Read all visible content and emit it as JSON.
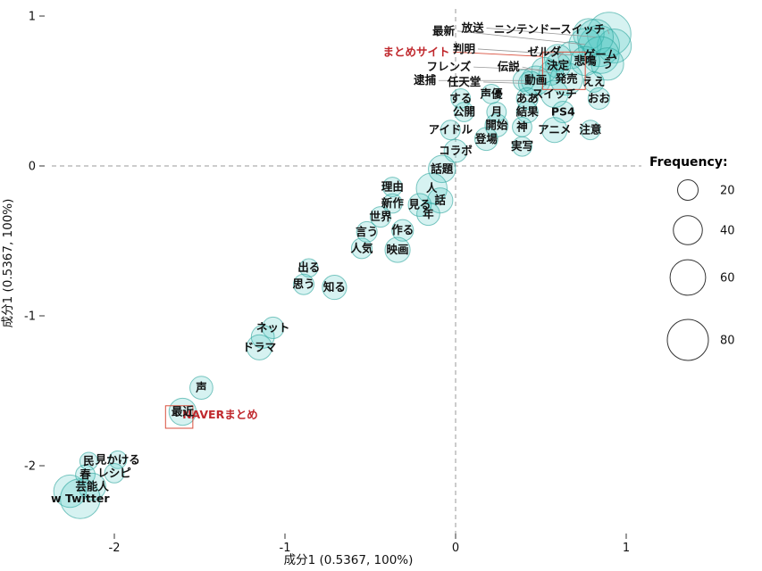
{
  "chart_data": {
    "type": "bubble",
    "title": "",
    "xlabel": "成分1 (0.5367, 100%)",
    "ylabel": "成分1 (0.5367, 100%)",
    "xlim": [
      -2.35,
      1.1
    ],
    "ylim": [
      -2.45,
      1.05
    ],
    "x_ticks": [
      -2,
      -1,
      0,
      1
    ],
    "y_ticks": [
      1,
      0,
      -1,
      -2
    ],
    "guides": {
      "x": 0,
      "y": 0,
      "style": "dashed"
    },
    "grid": false,
    "bubble_fill": "#45c6be",
    "bubble_stroke": "#2aa39b",
    "annotation_color": "#d94f3d",
    "annotation_text_color": "#c0282d",
    "legend": {
      "title": "Frequency:",
      "sizes": [
        20,
        40,
        60,
        80
      ],
      "position": "right"
    },
    "points": [
      {
        "label": "ニンテンドースイッチ",
        "x": 0.9,
        "y": 0.88,
        "freq": 90,
        "lx": 0.55,
        "ly": 0.91
      },
      {
        "label": "",
        "x": 0.84,
        "y": 0.8,
        "freq": 80
      },
      {
        "label": "",
        "x": 0.93,
        "y": 0.8,
        "freq": 55
      },
      {
        "label": "",
        "x": 0.78,
        "y": 0.88,
        "freq": 45
      },
      {
        "label": "放送",
        "x": 0.82,
        "y": 0.86,
        "freq": 60,
        "lx": 0.1,
        "ly": 0.92
      },
      {
        "label": "最新",
        "x": 0.76,
        "y": 0.81,
        "freq": 50,
        "lx": -0.07,
        "ly": 0.9
      },
      {
        "label": "ゲーム",
        "x": 0.85,
        "y": 0.74,
        "freq": 65
      },
      {
        "label": "判明",
        "x": 0.68,
        "y": 0.74,
        "freq": 35,
        "lx": 0.05,
        "ly": 0.78
      },
      {
        "label": "ゼルダ",
        "x": 0.6,
        "y": 0.72,
        "freq": 35,
        "lx": 0.52,
        "ly": 0.76
      },
      {
        "label": "う",
        "x": 0.89,
        "y": 0.68,
        "freq": 50
      },
      {
        "label": "悲鳴",
        "x": 0.76,
        "y": 0.7,
        "freq": 40
      },
      {
        "label": "決定",
        "x": 0.6,
        "y": 0.67,
        "freq": 30
      },
      {
        "label": "伝説",
        "x": 0.56,
        "y": 0.62,
        "freq": 28,
        "lx": 0.31,
        "ly": 0.66
      },
      {
        "label": "フレンズ",
        "x": 0.52,
        "y": 0.64,
        "freq": 30,
        "lx": -0.04,
        "ly": 0.66
      },
      {
        "label": "発売",
        "x": 0.65,
        "y": 0.58,
        "freq": 50
      },
      {
        "label": "動画",
        "x": 0.47,
        "y": 0.57,
        "freq": 40
      },
      {
        "label": "任天堂",
        "x": 0.44,
        "y": 0.55,
        "freq": 28,
        "lx": 0.05,
        "ly": 0.56
      },
      {
        "label": "逮捕",
        "x": 0.4,
        "y": 0.57,
        "freq": 22,
        "lx": -0.18,
        "ly": 0.57
      },
      {
        "label": "ええ",
        "x": 0.81,
        "y": 0.56,
        "freq": 20
      },
      {
        "label": "おお",
        "x": 0.84,
        "y": 0.45,
        "freq": 22
      },
      {
        "label": "スイッチ",
        "x": 0.58,
        "y": 0.48,
        "freq": 35
      },
      {
        "label": "ああ",
        "x": 0.42,
        "y": 0.45,
        "freq": 22
      },
      {
        "label": "声優",
        "x": 0.21,
        "y": 0.48,
        "freq": 18
      },
      {
        "label": "する",
        "x": 0.03,
        "y": 0.45,
        "freq": 18
      },
      {
        "label": "公開",
        "x": 0.05,
        "y": 0.36,
        "freq": 18
      },
      {
        "label": "月",
        "x": 0.24,
        "y": 0.36,
        "freq": 18
      },
      {
        "label": "結果",
        "x": 0.42,
        "y": 0.36,
        "freq": 22
      },
      {
        "label": "PS4",
        "x": 0.63,
        "y": 0.36,
        "freq": 22
      },
      {
        "label": "アイドル",
        "x": -0.03,
        "y": 0.24,
        "freq": 18
      },
      {
        "label": "開始",
        "x": 0.24,
        "y": 0.27,
        "freq": 25
      },
      {
        "label": "神",
        "x": 0.39,
        "y": 0.26,
        "freq": 18
      },
      {
        "label": "アニメ",
        "x": 0.58,
        "y": 0.24,
        "freq": 30
      },
      {
        "label": "注意",
        "x": 0.79,
        "y": 0.24,
        "freq": 18
      },
      {
        "label": "登場",
        "x": 0.18,
        "y": 0.18,
        "freq": 25
      },
      {
        "label": "実写",
        "x": 0.39,
        "y": 0.13,
        "freq": 18
      },
      {
        "label": "コラボ",
        "x": 0.0,
        "y": 0.1,
        "freq": 25
      },
      {
        "label": "話題",
        "x": -0.08,
        "y": -0.02,
        "freq": 35
      },
      {
        "label": "理由",
        "x": -0.37,
        "y": -0.14,
        "freq": 18
      },
      {
        "label": "人",
        "x": -0.14,
        "y": -0.15,
        "freq": 45
      },
      {
        "label": "新作",
        "x": -0.37,
        "y": -0.25,
        "freq": 18
      },
      {
        "label": "見る",
        "x": -0.21,
        "y": -0.26,
        "freq": 25
      },
      {
        "label": "話",
        "x": -0.09,
        "y": -0.23,
        "freq": 30
      },
      {
        "label": "世界",
        "x": -0.44,
        "y": -0.34,
        "freq": 20
      },
      {
        "label": "年",
        "x": -0.16,
        "y": -0.32,
        "freq": 25
      },
      {
        "label": "言う",
        "x": -0.52,
        "y": -0.44,
        "freq": 20
      },
      {
        "label": "作る",
        "x": -0.31,
        "y": -0.43,
        "freq": 22
      },
      {
        "label": "人気",
        "x": -0.55,
        "y": -0.55,
        "freq": 20
      },
      {
        "label": "映画",
        "x": -0.34,
        "y": -0.56,
        "freq": 30
      },
      {
        "label": "出る",
        "x": -0.86,
        "y": -0.68,
        "freq": 16
      },
      {
        "label": "思う",
        "x": -0.89,
        "y": -0.79,
        "freq": 20
      },
      {
        "label": "知る",
        "x": -0.71,
        "y": -0.81,
        "freq": 28
      },
      {
        "label": "ネット",
        "x": -1.07,
        "y": -1.08,
        "freq": 22
      },
      {
        "label": "",
        "x": -1.13,
        "y": -1.14,
        "freq": 25
      },
      {
        "label": "ドラマ",
        "x": -1.15,
        "y": -1.21,
        "freq": 30
      },
      {
        "label": "声",
        "x": -1.49,
        "y": -1.48,
        "freq": 25
      },
      {
        "label": "最近",
        "x": -1.6,
        "y": -1.64,
        "freq": 35
      },
      {
        "label": "民",
        "x": -2.15,
        "y": -1.97,
        "freq": 15
      },
      {
        "label": "見かける",
        "x": -1.98,
        "y": -1.96,
        "freq": 15
      },
      {
        "label": "春",
        "x": -2.17,
        "y": -2.06,
        "freq": 18
      },
      {
        "label": "レシピ",
        "x": -2.0,
        "y": -2.05,
        "freq": 18
      },
      {
        "label": "芸能人",
        "x": -2.13,
        "y": -2.14,
        "freq": 35
      },
      {
        "label": "",
        "x": -2.26,
        "y": -2.17,
        "freq": 50
      },
      {
        "label": "w Twitter",
        "x": -2.2,
        "y": -2.22,
        "freq": 75
      }
    ],
    "annotations": [
      {
        "type": "rect",
        "x1": 0.51,
        "y1": 0.51,
        "x2": 0.76,
        "y2": 0.76
      },
      {
        "type": "rect",
        "x1": -1.7,
        "y1": -1.75,
        "x2": -1.54,
        "y2": -1.6
      },
      {
        "type": "label",
        "text": "まとめサイト",
        "x": -0.23,
        "y": 0.76,
        "leader": [
          0.51,
          0.73
        ]
      },
      {
        "type": "label",
        "text": "NAVERまとめ",
        "x": -1.38,
        "y": -1.66
      }
    ]
  }
}
